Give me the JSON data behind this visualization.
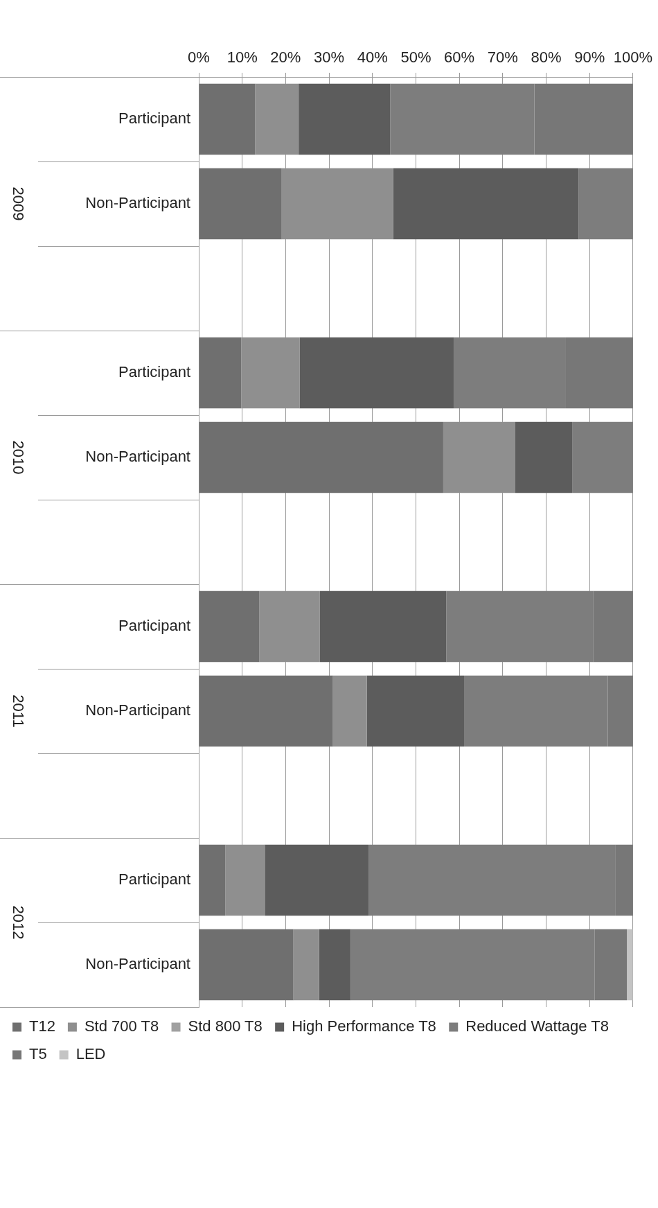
{
  "chart_data": {
    "type": "bar",
    "stacked": true,
    "orientation": "horizontal",
    "categories": [
      "Participant",
      "Non-Participant",
      null,
      "Participant",
      "Non-Participant",
      null,
      "Participant",
      "Non-Participant",
      null,
      "Participant",
      "Non-Participant"
    ],
    "series": [
      {
        "name": "T12",
        "color": "#6f6f6f",
        "values": [
          13.0,
          19.1,
          null,
          9.8,
          56.3,
          null,
          13.9,
          30.9,
          null,
          6.1,
          21.8
        ]
      },
      {
        "name": "Std 700 T8",
        "color": "#8f8f8f",
        "values": [
          10.0,
          25.7,
          null,
          13.4,
          16.6,
          null,
          14.0,
          7.8,
          null,
          9.1,
          5.9
        ]
      },
      {
        "name": "Std 800 T8",
        "color": "#a0a0a0",
        "values": [
          0,
          0,
          null,
          0,
          0,
          null,
          0,
          0,
          null,
          0,
          0
        ]
      },
      {
        "name": "High Performance T8",
        "color": "#5c5c5c",
        "values": [
          21.1,
          42.7,
          null,
          35.5,
          13.1,
          null,
          29.1,
          22.4,
          null,
          23.9,
          7.3
        ]
      },
      {
        "name": "Reduced Wattage T8",
        "color": "#7d7d7d",
        "values": [
          33.2,
          12.5,
          null,
          25.7,
          14.0,
          null,
          33.9,
          33.1,
          null,
          56.8,
          56.2
        ]
      },
      {
        "name": "T5",
        "color": "#777777",
        "values": [
          22.7,
          0,
          null,
          15.6,
          0,
          null,
          9.1,
          5.8,
          null,
          4.1,
          7.4
        ]
      },
      {
        "name": "LED",
        "color": "#c4c4c4",
        "values": [
          0,
          0,
          null,
          0,
          0,
          null,
          0,
          0,
          null,
          0,
          1.4
        ]
      }
    ],
    "xlim": [
      0,
      100
    ],
    "xticks": [
      {
        "value": 0,
        "label": "0%"
      },
      {
        "value": 10,
        "label": "10%"
      },
      {
        "value": 20,
        "label": "20%"
      },
      {
        "value": 30,
        "label": "30%"
      },
      {
        "value": 40,
        "label": "40%"
      },
      {
        "value": 50,
        "label": "50%"
      },
      {
        "value": 60,
        "label": "60%"
      },
      {
        "value": 70,
        "label": "70%"
      },
      {
        "value": 80,
        "label": "80%"
      },
      {
        "value": 90,
        "label": "90%"
      },
      {
        "value": 100,
        "label": "100%"
      }
    ],
    "annotations": [
      "2009",
      "2010",
      "2011",
      "2012"
    ],
    "grid": "x",
    "legend": "bottom"
  }
}
